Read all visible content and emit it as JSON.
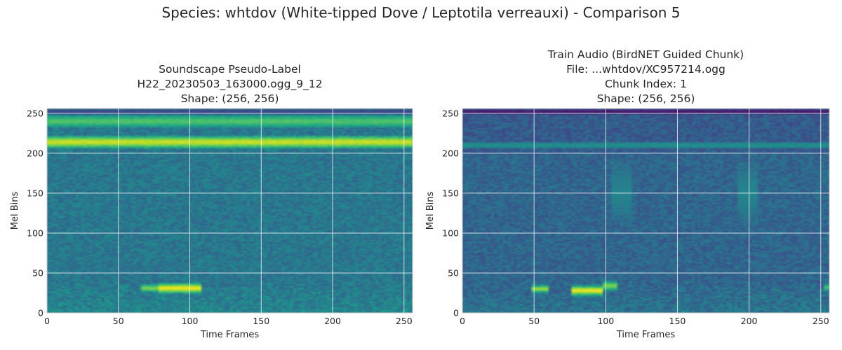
{
  "figure": {
    "suptitle": "Species: whtdov (White-tipped Dove / Leptotila verreauxi) - Comparison 5"
  },
  "chart_data": [
    {
      "type": "heatmap",
      "title_lines": [
        "Soundscape Pseudo-Label",
        "H22_20230503_163000.ogg_9_12",
        "Shape: (256, 256)"
      ],
      "xlabel": "Time Frames",
      "ylabel": "Mel Bins",
      "xlim": [
        0,
        256
      ],
      "ylim": [
        0,
        256
      ],
      "xticks": [
        0,
        50,
        100,
        150,
        200,
        250
      ],
      "yticks": [
        0,
        50,
        100,
        150,
        200,
        250
      ],
      "grid": true,
      "colormap": "viridis",
      "features": [
        {
          "kind": "band",
          "y_center": 214,
          "half_width": 5,
          "intensity": 0.92
        },
        {
          "kind": "band",
          "y_center": 240,
          "half_width": 5,
          "intensity": 0.72
        },
        {
          "kind": "band",
          "y_center": 252,
          "half_width": 2,
          "intensity": 0.2
        },
        {
          "kind": "blob",
          "x": [
            78,
            108
          ],
          "y_center": 31,
          "half_width": 4,
          "intensity": 0.97
        },
        {
          "kind": "blob",
          "x": [
            67,
            77
          ],
          "y_center": 31,
          "half_width": 3,
          "intensity": 0.8
        },
        {
          "kind": "blob",
          "x": [
            50,
            56
          ],
          "y_center": 32,
          "half_width": 2,
          "intensity": 0.5
        },
        {
          "kind": "blob",
          "x": [
            140,
            150
          ],
          "y_center": 30,
          "half_width": 2,
          "intensity": 0.4
        }
      ]
    },
    {
      "type": "heatmap",
      "title_lines": [
        "Train Audio (BirdNET Guided Chunk)",
        "File: ...whtdov/XC957214.ogg",
        "Chunk Index: 1",
        "Shape: (256, 256)"
      ],
      "xlabel": "Time Frames",
      "ylabel": "Mel Bins",
      "xlim": [
        0,
        256
      ],
      "ylim": [
        0,
        256
      ],
      "xticks": [
        0,
        50,
        100,
        150,
        200,
        250
      ],
      "yticks": [
        0,
        50,
        100,
        150,
        200,
        250
      ],
      "grid": true,
      "colormap": "viridis",
      "features": [
        {
          "kind": "band",
          "y_center": 210,
          "half_width": 3,
          "intensity": 0.5
        },
        {
          "kind": "band",
          "y_center": 252,
          "half_width": 2,
          "intensity": 0.05
        },
        {
          "kind": "blob",
          "x": [
            76,
            98
          ],
          "y_center": 28,
          "half_width": 4,
          "intensity": 0.97
        },
        {
          "kind": "blob",
          "x": [
            98,
            108
          ],
          "y_center": 34,
          "half_width": 4,
          "intensity": 0.8
        },
        {
          "kind": "blob",
          "x": [
            49,
            60
          ],
          "y_center": 30,
          "half_width": 3,
          "intensity": 0.85
        },
        {
          "kind": "blob",
          "x": [
            252,
            256
          ],
          "y_center": 32,
          "half_width": 3,
          "intensity": 0.7
        },
        {
          "kind": "blob",
          "x": [
            105,
            118
          ],
          "y_center": 150,
          "half_width": 22,
          "intensity": 0.45
        },
        {
          "kind": "blob",
          "x": [
            192,
            206
          ],
          "y_center": 150,
          "half_width": 22,
          "intensity": 0.45
        },
        {
          "kind": "blob",
          "x": [
            38,
            46
          ],
          "y_center": 170,
          "half_width": 12,
          "intensity": 0.3
        },
        {
          "kind": "blob",
          "x": [
            2,
            8
          ],
          "y_center": 165,
          "half_width": 15,
          "intensity": 0.3
        },
        {
          "kind": "blob",
          "x": [
            238,
            256
          ],
          "y_center": 170,
          "half_width": 10,
          "intensity": 0.3
        }
      ]
    }
  ]
}
